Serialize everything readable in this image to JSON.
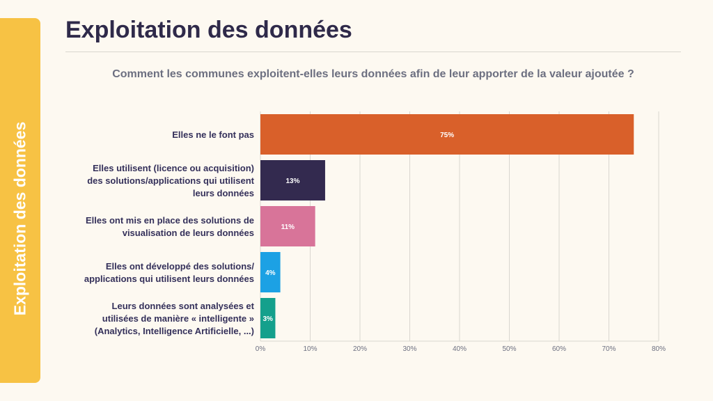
{
  "sidebar": {
    "label": "Exploitation des données"
  },
  "header": {
    "title": "Exploitation des données",
    "question": "Comment les communes exploitent-elles leurs données afin de leur apporter de la valeur ajoutée ?"
  },
  "colors": {
    "background": "#fdf9f1",
    "sidebar": "#f7c244",
    "title": "#2f2a4a",
    "gridline": "#d9d6cf"
  },
  "chart_data": {
    "type": "bar",
    "orientation": "horizontal",
    "title": "Comment les communes exploitent-elles leurs données afin de leur apporter de la valeur ajoutée ?",
    "xlabel": "",
    "ylabel": "",
    "xlim": [
      0,
      80
    ],
    "grid": true,
    "ticks": [
      0,
      10,
      20,
      30,
      40,
      50,
      60,
      70,
      80
    ],
    "tick_labels": [
      "0%",
      "10%",
      "20%",
      "30%",
      "40%",
      "50%",
      "60%",
      "70%",
      "80%"
    ],
    "categories": [
      [
        "Elles ne le font pas"
      ],
      [
        "Elles utilisent (licence ou acquisition)",
        "des solutions/applications qui utilisent",
        "leurs données"
      ],
      [
        "Elles ont mis en place des solutions de",
        "visualisation de leurs données"
      ],
      [
        "Elles ont développé des solutions/",
        "applications qui utilisent leurs données"
      ],
      [
        "Leurs données sont analysées et",
        "utilisées de manière « intelligente »",
        "(Analytics, Intelligence Artificielle, ...)"
      ]
    ],
    "values": [
      75,
      13,
      11,
      4,
      3
    ],
    "value_labels": [
      "75%",
      "13%",
      "11%",
      "4%",
      "3%"
    ],
    "bar_colors": [
      "#d9602a",
      "#332a4f",
      "#d87499",
      "#1ca1e4",
      "#14a08c"
    ]
  }
}
